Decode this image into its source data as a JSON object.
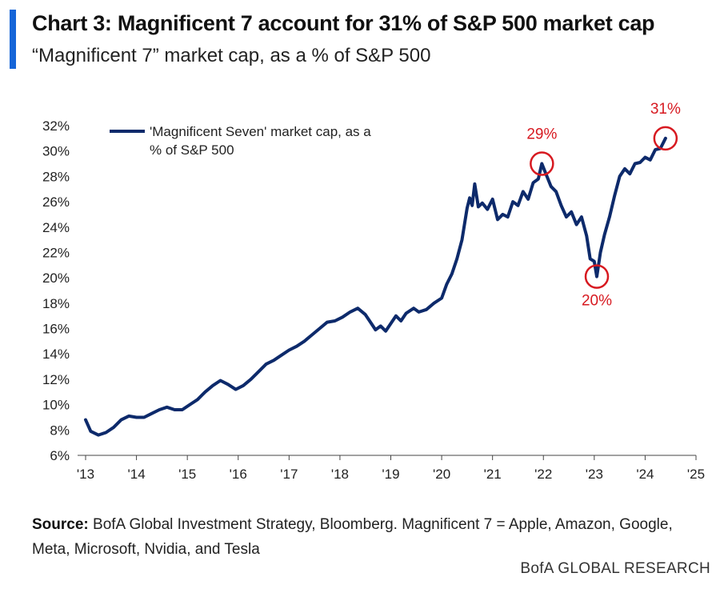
{
  "header": {
    "title": "Chart 3: Magnificent 7 account for 31% of S&P 500 market cap",
    "subtitle": "“Magnificent 7” market cap, as a % of S&P 500"
  },
  "footer": {
    "source_label": "Source:",
    "source_text": "BofA Global Investment Strategy, Bloomberg. Magnificent 7 = Apple, Amazon, Google, Meta, Microsoft, Nvidia, and Tesla",
    "brand": "BofA GLOBAL RESEARCH"
  },
  "colors": {
    "accent": "#1565d8",
    "series": "#0d2a6b",
    "highlight": "#d71920"
  },
  "chart_data": {
    "type": "line",
    "title": "",
    "xlabel": "",
    "ylabel": "",
    "xlim": [
      2013,
      2025
    ],
    "ylim": [
      6,
      32
    ],
    "x_ticks": [
      2013,
      2014,
      2015,
      2016,
      2017,
      2018,
      2019,
      2020,
      2021,
      2022,
      2023,
      2024,
      2025
    ],
    "x_tick_labels": [
      "'13",
      "'14",
      "'15",
      "'16",
      "'17",
      "'18",
      "'19",
      "'20",
      "'21",
      "'22",
      "'23",
      "'24",
      "'25"
    ],
    "y_ticks": [
      6,
      8,
      10,
      12,
      14,
      16,
      18,
      20,
      22,
      24,
      26,
      28,
      30,
      32
    ],
    "y_tick_labels": [
      "6%",
      "8%",
      "10%",
      "12%",
      "14%",
      "16%",
      "18%",
      "20%",
      "22%",
      "24%",
      "26%",
      "28%",
      "30%",
      "32%"
    ],
    "grid": false,
    "legend": {
      "position": "top-left",
      "entries": [
        "'Magnificent Seven' market cap, as a % of S&P 500"
      ]
    },
    "series": [
      {
        "name": "'Magnificent Seven' market cap, as a % of S&P 500",
        "x": [
          2013.0,
          2013.1,
          2013.25,
          2013.4,
          2013.55,
          2013.7,
          2013.85,
          2014.0,
          2014.15,
          2014.3,
          2014.45,
          2014.6,
          2014.75,
          2014.9,
          2015.05,
          2015.2,
          2015.35,
          2015.5,
          2015.65,
          2015.8,
          2015.95,
          2016.1,
          2016.25,
          2016.4,
          2016.55,
          2016.7,
          2016.85,
          2017.0,
          2017.15,
          2017.3,
          2017.45,
          2017.6,
          2017.75,
          2017.9,
          2018.05,
          2018.2,
          2018.35,
          2018.5,
          2018.6,
          2018.7,
          2018.8,
          2018.9,
          2019.0,
          2019.1,
          2019.2,
          2019.3,
          2019.45,
          2019.55,
          2019.7,
          2019.85,
          2020.0,
          2020.1,
          2020.2,
          2020.3,
          2020.4,
          2020.5,
          2020.55,
          2020.6,
          2020.65,
          2020.72,
          2020.8,
          2020.9,
          2021.0,
          2021.1,
          2021.2,
          2021.3,
          2021.4,
          2021.5,
          2021.6,
          2021.7,
          2021.8,
          2021.9,
          2021.97,
          2022.05,
          2022.15,
          2022.25,
          2022.35,
          2022.45,
          2022.55,
          2022.65,
          2022.75,
          2022.85,
          2022.92,
          2023.0,
          2023.05,
          2023.12,
          2023.2,
          2023.3,
          2023.4,
          2023.5,
          2023.6,
          2023.7,
          2023.8,
          2023.9,
          2024.0,
          2024.1,
          2024.2,
          2024.3,
          2024.4
        ],
        "values": [
          8.8,
          7.9,
          7.6,
          7.8,
          8.2,
          8.8,
          9.1,
          9.0,
          9.0,
          9.3,
          9.6,
          9.8,
          9.6,
          9.6,
          10.0,
          10.4,
          11.0,
          11.5,
          11.9,
          11.6,
          11.2,
          11.5,
          12.0,
          12.6,
          13.2,
          13.5,
          13.9,
          14.3,
          14.6,
          15.0,
          15.5,
          16.0,
          16.5,
          16.6,
          16.9,
          17.3,
          17.6,
          17.1,
          16.5,
          15.9,
          16.2,
          15.8,
          16.4,
          17.0,
          16.6,
          17.2,
          17.6,
          17.3,
          17.5,
          18.0,
          18.4,
          19.5,
          20.3,
          21.5,
          23.0,
          25.5,
          26.3,
          25.7,
          27.4,
          25.6,
          25.9,
          25.4,
          26.2,
          24.6,
          25.0,
          24.8,
          26.0,
          25.7,
          26.8,
          26.2,
          27.5,
          27.8,
          29.0,
          28.2,
          27.2,
          26.8,
          25.7,
          24.8,
          25.2,
          24.2,
          24.8,
          23.3,
          21.5,
          21.3,
          20.1,
          22.0,
          23.4,
          24.8,
          26.5,
          28.0,
          28.6,
          28.2,
          29.0,
          29.1,
          29.5,
          29.3,
          30.1,
          30.2,
          31.0
        ]
      }
    ],
    "annotations": [
      {
        "label": "29%",
        "x": 2021.97,
        "y": 29.0
      },
      {
        "label": "20%",
        "x": 2023.05,
        "y": 20.1
      },
      {
        "label": "31%",
        "x": 2024.4,
        "y": 31.0
      }
    ]
  }
}
